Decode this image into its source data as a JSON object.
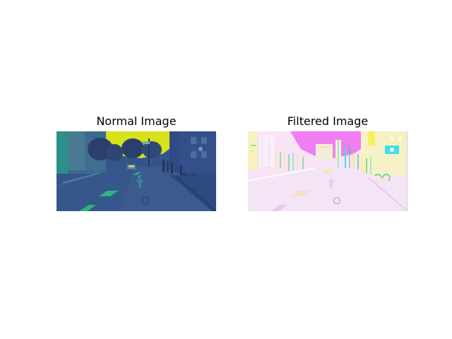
{
  "figure": {
    "panels": [
      {
        "title": "Normal Image",
        "colormap": "viridis",
        "scene": "street",
        "colors": {
          "sky": "#d7e21a",
          "buildings_dark": "#2f4a86",
          "buildings_mid": "#3e6b8d",
          "trees": "#2a3f6b",
          "road": "#3b5b8c",
          "road_dark": "#2c4a7d",
          "lane_marking": "#2fb47c",
          "sidewalk": "#375a8a"
        }
      },
      {
        "title": "Filtered Image",
        "colormap": "edge-filtered",
        "scene": "street",
        "colors": {
          "sky": "#ee7ef2",
          "background": "#f8e3f7",
          "road": "#f3e4f6",
          "edge_yellow": "#f3f15a",
          "edge_green": "#3ccf5a",
          "edge_cyan": "#3fe0ee",
          "marking": "#e9c8ee"
        }
      }
    ]
  }
}
